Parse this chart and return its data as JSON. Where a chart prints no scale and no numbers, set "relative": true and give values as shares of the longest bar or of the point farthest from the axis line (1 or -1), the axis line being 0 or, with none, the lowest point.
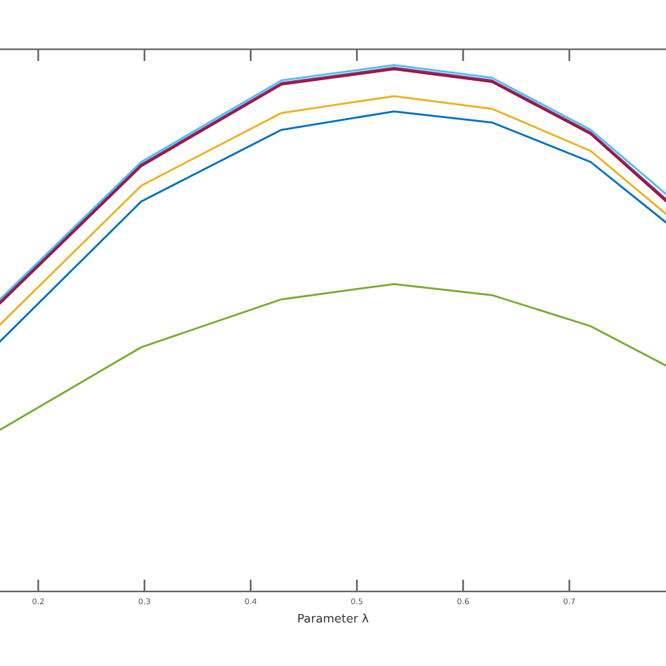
{
  "chart_data": {
    "type": "line",
    "xlabel": "Parameter λ",
    "relative": true,
    "xlim": [
      0.164,
      0.791
    ],
    "xticks": [
      0.2,
      0.3,
      0.4,
      0.5,
      0.6,
      0.7
    ],
    "tick_labels": "x",
    "grid": false,
    "legend": false,
    "x": [
      0.164,
      0.297,
      0.429,
      0.535,
      0.627,
      0.72,
      0.791
    ],
    "series": [
      {
        "color": "#4dbeee",
        "values": [
          0.555,
          0.816,
          0.971,
          1.0,
          0.976,
          0.877,
          0.755
        ]
      },
      {
        "color": "#7e2f8e",
        "values": [
          0.55,
          0.811,
          0.966,
          0.995,
          0.971,
          0.872,
          0.745
        ]
      },
      {
        "color": "#a2142f",
        "values": [
          0.547,
          0.808,
          0.963,
          0.992,
          0.968,
          0.869,
          0.741
        ]
      },
      {
        "color": "#edb120",
        "values": [
          0.507,
          0.771,
          0.909,
          0.941,
          0.917,
          0.837,
          0.717
        ]
      },
      {
        "color": "#0072bd",
        "values": [
          0.475,
          0.741,
          0.877,
          0.912,
          0.891,
          0.816,
          0.701
        ]
      },
      {
        "color": "#77ac30",
        "values": [
          0.307,
          0.464,
          0.555,
          0.584,
          0.563,
          0.504,
          0.429
        ]
      }
    ]
  }
}
